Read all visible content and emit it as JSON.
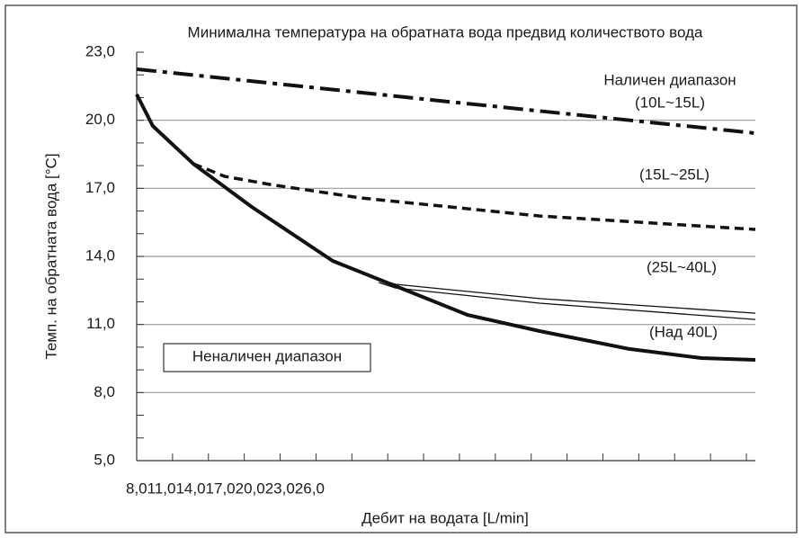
{
  "chart_data": {
    "type": "line",
    "title": "Минимална температура на обратната вода предвид количеството вода",
    "xlabel": "Дебит на водата [L/min]",
    "ylabel": "Темп. на обратната вода [°C]",
    "xtick_labels_printed": "8,011,014,017,020,023,026,0",
    "xlim": [
      8,
      42.5
    ],
    "ylim": [
      5,
      23
    ],
    "yticks": [
      {
        "value": 5,
        "label": "5,0"
      },
      {
        "value": 8,
        "label": "8,0"
      },
      {
        "value": 11,
        "label": "11,0"
      },
      {
        "value": 14,
        "label": "14,0"
      },
      {
        "value": 17,
        "label": "17,0"
      },
      {
        "value": 20,
        "label": "20,0"
      },
      {
        "value": 23,
        "label": "23,0"
      }
    ],
    "grid": true,
    "series": [
      {
        "color": "#111111",
        "style": "dashdot",
        "width": 4,
        "x": [
          8,
          25,
          42.5
        ],
        "values": [
          22.25,
          20.85,
          19.43
        ]
      },
      {
        "color": "#111111",
        "style": "dashed",
        "width": 3.5,
        "x": [
          11.16,
          12.9,
          15.42,
          20.44,
          30.47,
          42.5
        ],
        "values": [
          18.08,
          17.53,
          17.17,
          16.58,
          15.78,
          15.19
        ]
      },
      {
        "color": "#111111",
        "style": "solid",
        "width": 4,
        "x": [
          8,
          8.9,
          11.16,
          14.42,
          18.93,
          22.44,
          26.46,
          30.47,
          35.48,
          39.49,
          42.5
        ],
        "values": [
          21.14,
          19.75,
          18.08,
          16.18,
          13.8,
          12.69,
          11.42,
          10.71,
          9.92,
          9.52,
          9.44
        ]
      },
      {
        "color": "#111111",
        "style": "solid",
        "width": 1.3,
        "x": [
          21.5,
          22.44,
          30.47,
          42.5
        ],
        "values": [
          13.0,
          12.77,
          12.14,
          11.5
        ]
      },
      {
        "color": "#111111",
        "style": "solid",
        "width": 1.3,
        "x": [
          21.5,
          22.44,
          30.47,
          42.5
        ],
        "values": [
          12.85,
          12.61,
          11.94,
          11.22
        ]
      }
    ],
    "annotations": [
      "Наличен диапазон",
      "(10L~15L)",
      "(15L~25L)",
      "(25L~40L)",
      "(Над 40L)",
      "Неналичен диапазон"
    ]
  }
}
